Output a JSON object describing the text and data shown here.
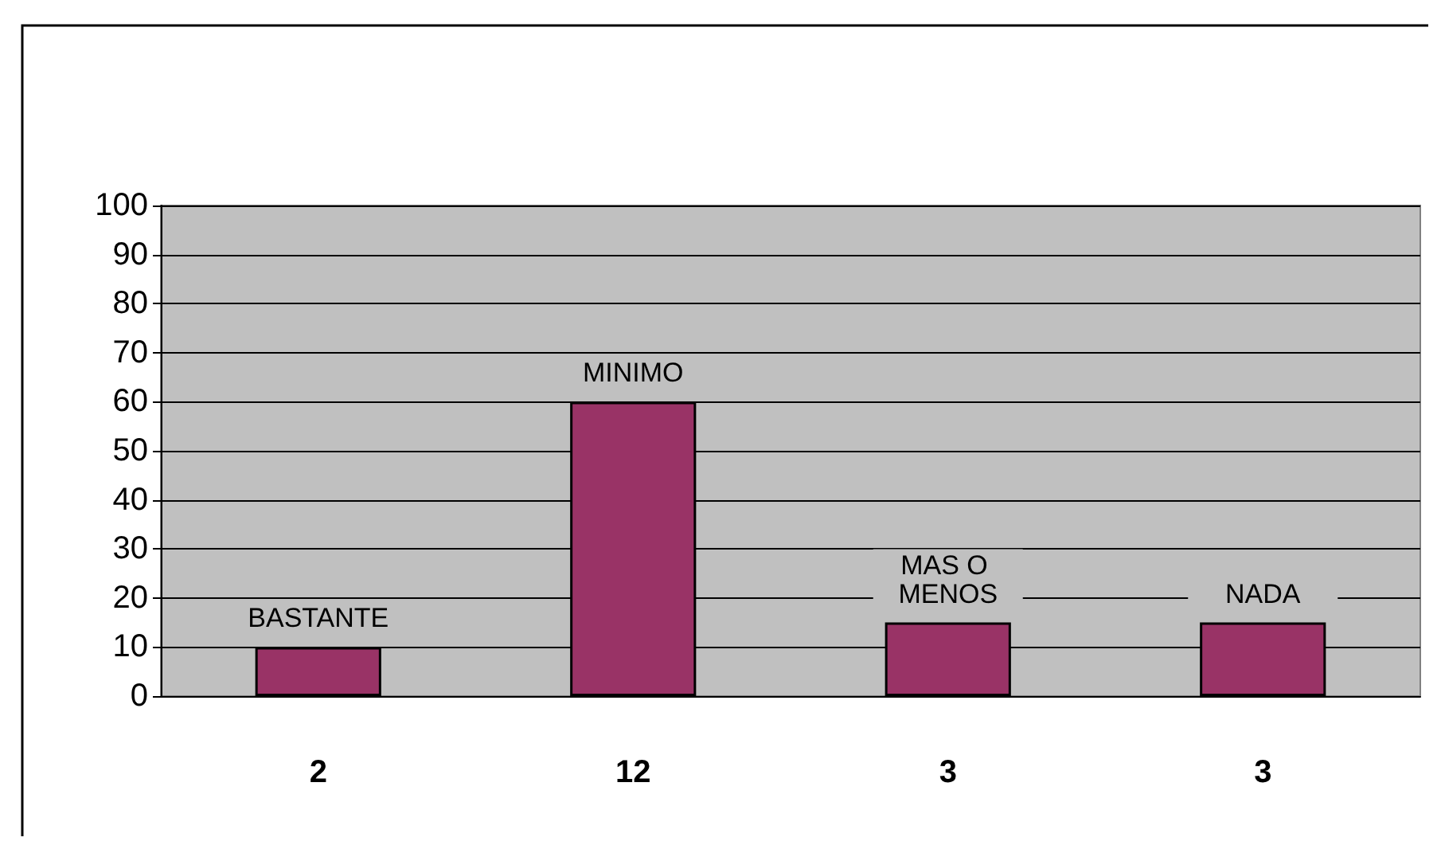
{
  "chart_data": {
    "type": "bar",
    "categories": [
      "2",
      "12",
      "3",
      "3"
    ],
    "values": [
      10,
      60,
      15,
      15
    ],
    "value_labels": [
      "BASTANTE",
      "MINIMO",
      "MAS O MENOS",
      "NADA"
    ],
    "color": "#993366",
    "ylim": [
      0,
      100
    ],
    "yticks": [
      0,
      10,
      20,
      30,
      40,
      50,
      60,
      70,
      80,
      90,
      100
    ],
    "grid": "y"
  }
}
